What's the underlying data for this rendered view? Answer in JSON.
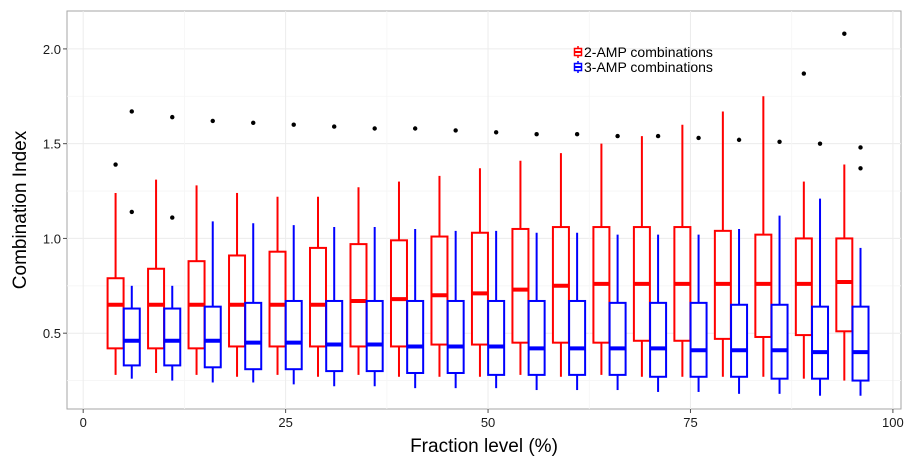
{
  "chart_data": {
    "type": "boxplot",
    "xlabel": "Fraction level (%)",
    "ylabel": "Combination Index",
    "xlim": [
      -2,
      101
    ],
    "ylim": [
      0.1,
      2.2
    ],
    "x_ticks": [
      0,
      25,
      50,
      75,
      100
    ],
    "x_tick_labels": [
      "0",
      "25",
      "50",
      "75",
      "100"
    ],
    "y_ticks": [
      0.5,
      1.0,
      1.5,
      2.0
    ],
    "y_tick_labels": [
      "0.5",
      "1.0",
      "1.5",
      "2.0"
    ],
    "grid": true,
    "legend_position": "top-right inside",
    "series": [
      {
        "name": "2-AMP combinations",
        "color": "#ff0000",
        "boxes": [
          {
            "x": 4,
            "lower_whisker": 0.28,
            "q1": 0.42,
            "median": 0.65,
            "q3": 0.79,
            "upper_whisker": 1.24,
            "outliers": [
              1.39
            ]
          },
          {
            "x": 9,
            "lower_whisker": 0.29,
            "q1": 0.42,
            "median": 0.65,
            "q3": 0.84,
            "upper_whisker": 1.31,
            "outliers": []
          },
          {
            "x": 14,
            "lower_whisker": 0.28,
            "q1": 0.42,
            "median": 0.65,
            "q3": 0.88,
            "upper_whisker": 1.28,
            "outliers": []
          },
          {
            "x": 19,
            "lower_whisker": 0.27,
            "q1": 0.43,
            "median": 0.65,
            "q3": 0.91,
            "upper_whisker": 1.24,
            "outliers": []
          },
          {
            "x": 24,
            "lower_whisker": 0.28,
            "q1": 0.43,
            "median": 0.65,
            "q3": 0.93,
            "upper_whisker": 1.22,
            "outliers": []
          },
          {
            "x": 29,
            "lower_whisker": 0.27,
            "q1": 0.43,
            "median": 0.65,
            "q3": 0.95,
            "upper_whisker": 1.22,
            "outliers": []
          },
          {
            "x": 34,
            "lower_whisker": 0.28,
            "q1": 0.43,
            "median": 0.67,
            "q3": 0.97,
            "upper_whisker": 1.27,
            "outliers": []
          },
          {
            "x": 39,
            "lower_whisker": 0.27,
            "q1": 0.43,
            "median": 0.68,
            "q3": 0.99,
            "upper_whisker": 1.3,
            "outliers": []
          },
          {
            "x": 44,
            "lower_whisker": 0.27,
            "q1": 0.44,
            "median": 0.7,
            "q3": 1.01,
            "upper_whisker": 1.33,
            "outliers": []
          },
          {
            "x": 49,
            "lower_whisker": 0.27,
            "q1": 0.44,
            "median": 0.71,
            "q3": 1.03,
            "upper_whisker": 1.37,
            "outliers": []
          },
          {
            "x": 54,
            "lower_whisker": 0.28,
            "q1": 0.45,
            "median": 0.73,
            "q3": 1.05,
            "upper_whisker": 1.41,
            "outliers": []
          },
          {
            "x": 59,
            "lower_whisker": 0.27,
            "q1": 0.45,
            "median": 0.75,
            "q3": 1.06,
            "upper_whisker": 1.45,
            "outliers": []
          },
          {
            "x": 64,
            "lower_whisker": 0.28,
            "q1": 0.45,
            "median": 0.76,
            "q3": 1.06,
            "upper_whisker": 1.5,
            "outliers": []
          },
          {
            "x": 69,
            "lower_whisker": 0.27,
            "q1": 0.46,
            "median": 0.76,
            "q3": 1.06,
            "upper_whisker": 1.54,
            "outliers": []
          },
          {
            "x": 74,
            "lower_whisker": 0.27,
            "q1": 0.46,
            "median": 0.76,
            "q3": 1.06,
            "upper_whisker": 1.6,
            "outliers": []
          },
          {
            "x": 79,
            "lower_whisker": 0.27,
            "q1": 0.47,
            "median": 0.76,
            "q3": 1.04,
            "upper_whisker": 1.67,
            "outliers": []
          },
          {
            "x": 84,
            "lower_whisker": 0.27,
            "q1": 0.48,
            "median": 0.76,
            "q3": 1.02,
            "upper_whisker": 1.75,
            "outliers": []
          },
          {
            "x": 89,
            "lower_whisker": 0.26,
            "q1": 0.49,
            "median": 0.76,
            "q3": 1.0,
            "upper_whisker": 1.3,
            "outliers": [
              1.87
            ]
          },
          {
            "x": 94,
            "lower_whisker": 0.25,
            "q1": 0.51,
            "median": 0.77,
            "q3": 1.0,
            "upper_whisker": 1.39,
            "outliers": [
              2.08
            ]
          }
        ]
      },
      {
        "name": "3-AMP combinations",
        "color": "#0000ff",
        "boxes": [
          {
            "x": 6,
            "lower_whisker": 0.26,
            "q1": 0.33,
            "median": 0.46,
            "q3": 0.63,
            "upper_whisker": 0.75,
            "outliers": [
              1.67,
              1.14
            ]
          },
          {
            "x": 11,
            "lower_whisker": 0.25,
            "q1": 0.33,
            "median": 0.46,
            "q3": 0.63,
            "upper_whisker": 0.75,
            "outliers": [
              1.64,
              1.11
            ]
          },
          {
            "x": 16,
            "lower_whisker": 0.24,
            "q1": 0.32,
            "median": 0.46,
            "q3": 0.64,
            "upper_whisker": 1.09,
            "outliers": [
              1.62
            ]
          },
          {
            "x": 21,
            "lower_whisker": 0.24,
            "q1": 0.31,
            "median": 0.45,
            "q3": 0.66,
            "upper_whisker": 1.08,
            "outliers": [
              1.61
            ]
          },
          {
            "x": 26,
            "lower_whisker": 0.23,
            "q1": 0.31,
            "median": 0.45,
            "q3": 0.67,
            "upper_whisker": 1.07,
            "outliers": [
              1.6
            ]
          },
          {
            "x": 31,
            "lower_whisker": 0.22,
            "q1": 0.3,
            "median": 0.44,
            "q3": 0.67,
            "upper_whisker": 1.06,
            "outliers": [
              1.59
            ]
          },
          {
            "x": 36,
            "lower_whisker": 0.22,
            "q1": 0.3,
            "median": 0.44,
            "q3": 0.67,
            "upper_whisker": 1.06,
            "outliers": [
              1.58
            ]
          },
          {
            "x": 41,
            "lower_whisker": 0.21,
            "q1": 0.29,
            "median": 0.43,
            "q3": 0.67,
            "upper_whisker": 1.05,
            "outliers": [
              1.58
            ]
          },
          {
            "x": 46,
            "lower_whisker": 0.21,
            "q1": 0.29,
            "median": 0.43,
            "q3": 0.67,
            "upper_whisker": 1.04,
            "outliers": [
              1.57
            ]
          },
          {
            "x": 51,
            "lower_whisker": 0.21,
            "q1": 0.28,
            "median": 0.43,
            "q3": 0.67,
            "upper_whisker": 1.04,
            "outliers": [
              1.56
            ]
          },
          {
            "x": 56,
            "lower_whisker": 0.2,
            "q1": 0.28,
            "median": 0.42,
            "q3": 0.67,
            "upper_whisker": 1.03,
            "outliers": [
              1.55
            ]
          },
          {
            "x": 61,
            "lower_whisker": 0.2,
            "q1": 0.28,
            "median": 0.42,
            "q3": 0.67,
            "upper_whisker": 1.03,
            "outliers": [
              1.55
            ]
          },
          {
            "x": 66,
            "lower_whisker": 0.2,
            "q1": 0.28,
            "median": 0.42,
            "q3": 0.66,
            "upper_whisker": 1.02,
            "outliers": [
              1.54
            ]
          },
          {
            "x": 71,
            "lower_whisker": 0.19,
            "q1": 0.27,
            "median": 0.42,
            "q3": 0.66,
            "upper_whisker": 1.02,
            "outliers": [
              1.54
            ]
          },
          {
            "x": 76,
            "lower_whisker": 0.19,
            "q1": 0.27,
            "median": 0.41,
            "q3": 0.66,
            "upper_whisker": 1.02,
            "outliers": [
              1.53
            ]
          },
          {
            "x": 81,
            "lower_whisker": 0.18,
            "q1": 0.27,
            "median": 0.41,
            "q3": 0.65,
            "upper_whisker": 1.05,
            "outliers": [
              1.52
            ]
          },
          {
            "x": 86,
            "lower_whisker": 0.18,
            "q1": 0.26,
            "median": 0.41,
            "q3": 0.65,
            "upper_whisker": 1.12,
            "outliers": [
              1.51
            ]
          },
          {
            "x": 91,
            "lower_whisker": 0.17,
            "q1": 0.26,
            "median": 0.4,
            "q3": 0.64,
            "upper_whisker": 1.21,
            "outliers": [
              1.5
            ]
          },
          {
            "x": 96,
            "lower_whisker": 0.17,
            "q1": 0.25,
            "median": 0.4,
            "q3": 0.64,
            "upper_whisker": 0.95,
            "outliers": [
              1.48,
              1.37
            ]
          }
        ]
      }
    ]
  }
}
